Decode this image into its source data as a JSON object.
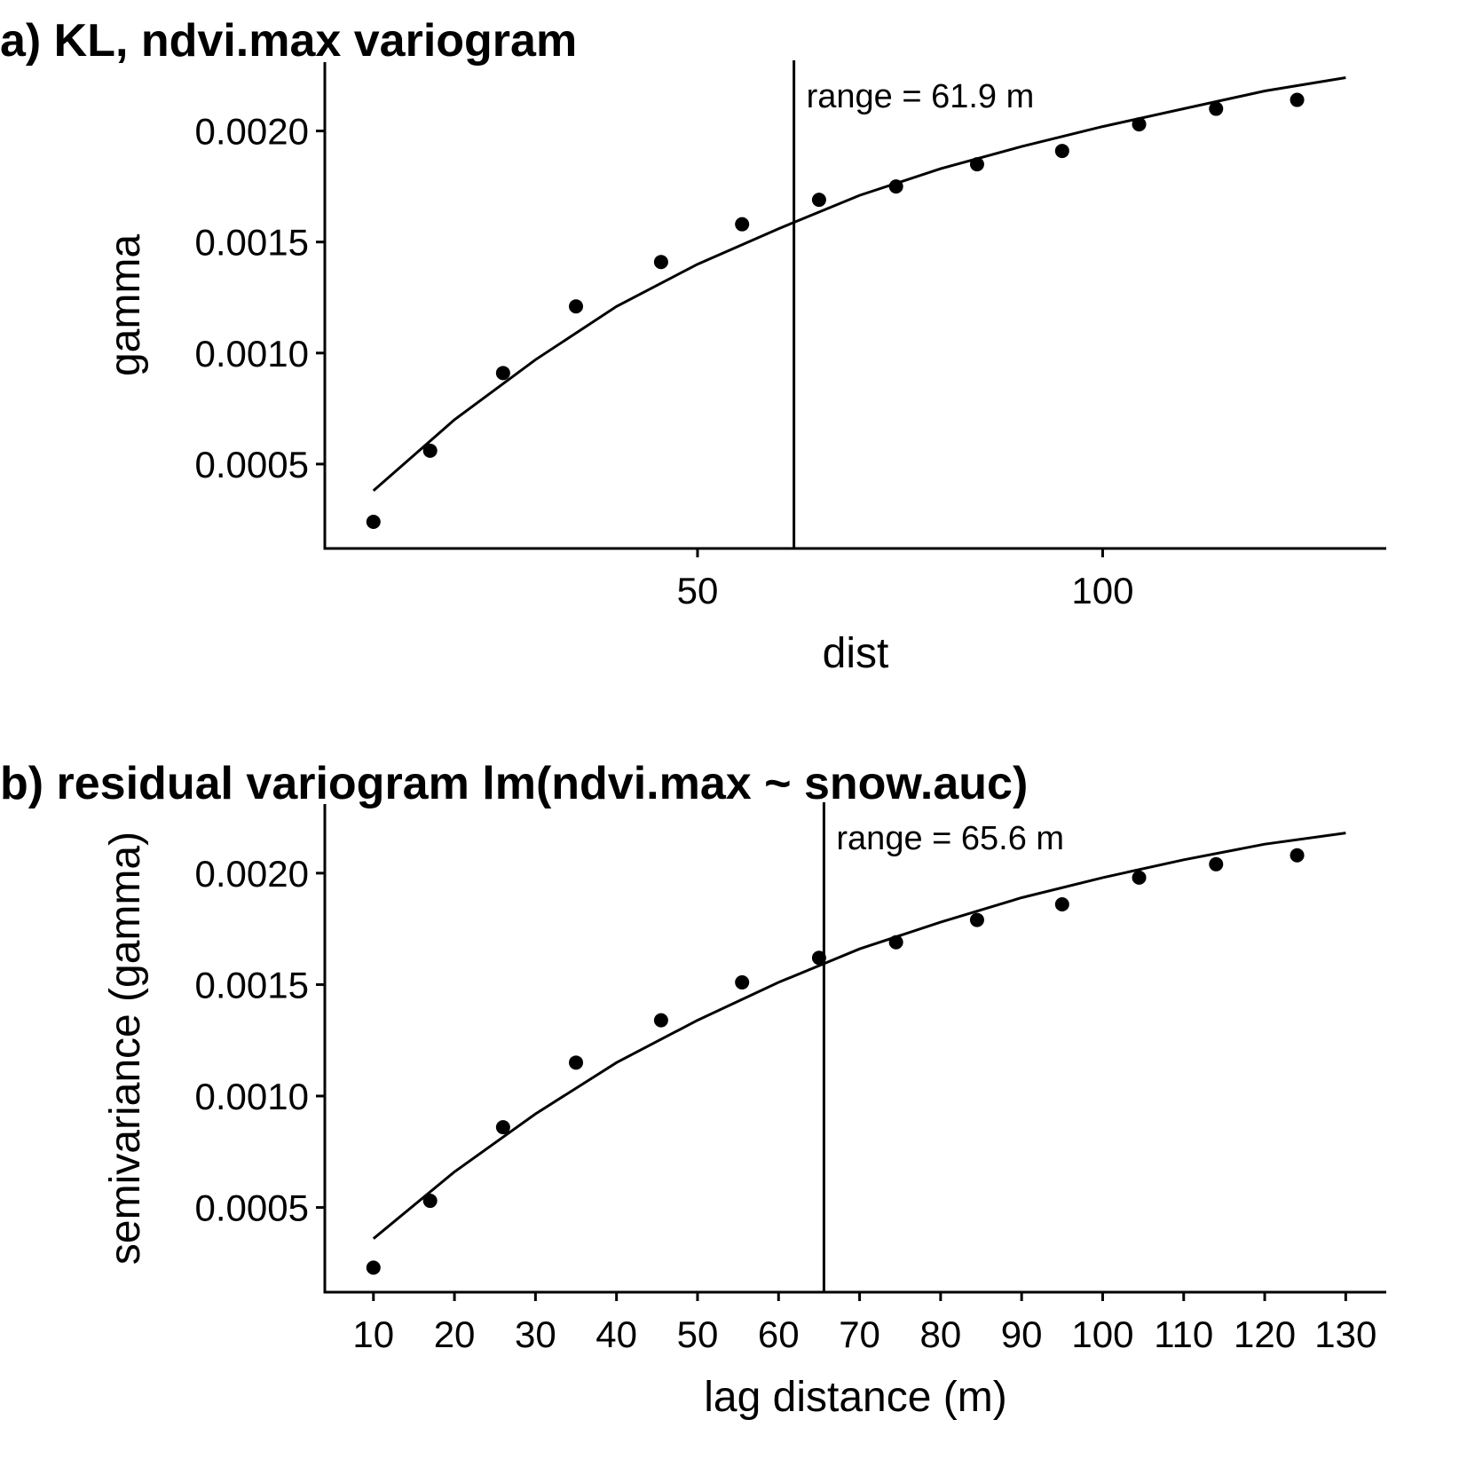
{
  "chart_data": [
    {
      "type": "scatter",
      "title": "a) KL, ndvi.max variogram",
      "xlabel": "dist",
      "ylabel": "gamma",
      "xlim": [
        4,
        135
      ],
      "ylim": [
        0.00012,
        0.00231
      ],
      "xticks": [
        50,
        100
      ],
      "yticks": [
        0.0005,
        0.001,
        0.0015,
        0.002
      ],
      "ytick_labels": [
        "0.0005",
        "0.0010",
        "0.0015",
        "0.0020"
      ],
      "points": {
        "x": [
          10,
          17,
          26,
          35,
          45.5,
          55.5,
          65,
          74.5,
          84.5,
          95,
          104.5,
          114,
          124
        ],
        "y": [
          0.00024,
          0.00056,
          0.00091,
          0.00121,
          0.00141,
          0.00158,
          0.00169,
          0.00175,
          0.00185,
          0.00191,
          0.00203,
          0.0021,
          0.00214
        ]
      },
      "fit": {
        "x": [
          10,
          20,
          30,
          40,
          50,
          60,
          70,
          80,
          90,
          100,
          110,
          120,
          130
        ],
        "y": [
          0.00038,
          0.0007,
          0.00097,
          0.00121,
          0.0014,
          0.00156,
          0.00171,
          0.00183,
          0.00193,
          0.00202,
          0.0021,
          0.00218,
          0.00224
        ]
      },
      "range_value": 61.9,
      "annotation": "range = 61.9 m"
    },
    {
      "type": "scatter",
      "title": "b) residual variogram lm(ndvi.max ~ snow.auc)",
      "xlabel": "lag distance (m)",
      "ylabel": "semivariance (gamma)",
      "xlim": [
        4,
        135
      ],
      "ylim": [
        0.00012,
        0.00231
      ],
      "xticks": [
        10,
        20,
        30,
        40,
        50,
        60,
        70,
        80,
        90,
        100,
        110,
        120,
        130
      ],
      "yticks": [
        0.0005,
        0.001,
        0.0015,
        0.002
      ],
      "ytick_labels": [
        "0.0005",
        "0.0010",
        "0.0015",
        "0.0020"
      ],
      "points": {
        "x": [
          10,
          17,
          26,
          35,
          45.5,
          55.5,
          65,
          74.5,
          84.5,
          95,
          104.5,
          114,
          124
        ],
        "y": [
          0.00023,
          0.00053,
          0.00086,
          0.00115,
          0.00134,
          0.00151,
          0.00162,
          0.00169,
          0.00179,
          0.00186,
          0.00198,
          0.00204,
          0.00208
        ]
      },
      "fit": {
        "x": [
          10,
          20,
          30,
          40,
          50,
          60,
          70,
          80,
          90,
          100,
          110,
          120,
          130
        ],
        "y": [
          0.00036,
          0.00066,
          0.00092,
          0.00115,
          0.00134,
          0.00151,
          0.00166,
          0.00178,
          0.00189,
          0.00198,
          0.00206,
          0.00213,
          0.00218
        ]
      },
      "range_value": 65.6,
      "annotation": "range = 65.6 m"
    }
  ]
}
